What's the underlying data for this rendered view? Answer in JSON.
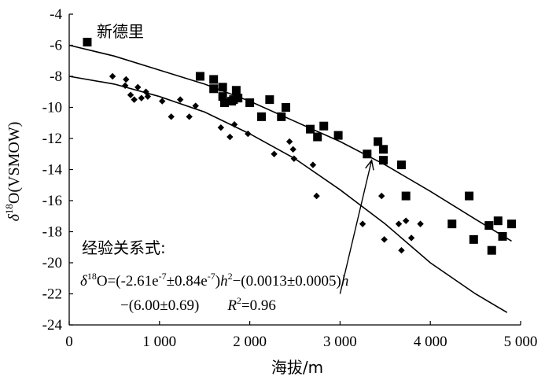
{
  "chart_data": {
    "type": "scatter",
    "xlabel": "海拔/m",
    "ylabel_parts": {
      "delta": "δ",
      "sup": "18",
      "rest": "O(VSMOW)"
    },
    "xlim": [
      0,
      5000
    ],
    "ylim": [
      -24,
      -4
    ],
    "x_ticks": [
      0,
      1000,
      2000,
      3000,
      4000,
      5000
    ],
    "x_tick_labels": [
      "0",
      "1 000",
      "2 000",
      "3 000",
      "4 000",
      "5 000"
    ],
    "y_ticks": [
      -24,
      -22,
      -20,
      -18,
      -16,
      -14,
      -12,
      -10,
      -8,
      -6,
      -4
    ],
    "y_tick_labels": [
      "-24",
      "-22",
      "-20",
      "-18",
      "-16",
      "-14",
      "-12",
      "-10",
      "-8",
      "-6",
      "-4"
    ],
    "grid": false,
    "series": [
      {
        "name": "新德里",
        "marker": "square",
        "color": "#000000",
        "points": [
          [
            200,
            -5.8
          ],
          [
            1450,
            -8.0
          ],
          [
            1600,
            -8.2
          ],
          [
            1600,
            -8.8
          ],
          [
            1700,
            -8.7
          ],
          [
            1700,
            -9.3
          ],
          [
            1720,
            -9.7
          ],
          [
            1800,
            -9.6
          ],
          [
            1820,
            -9.5
          ],
          [
            1850,
            -8.9
          ],
          [
            1870,
            -9.4
          ],
          [
            2000,
            -9.7
          ],
          [
            2130,
            -10.6
          ],
          [
            2220,
            -9.5
          ],
          [
            2350,
            -10.6
          ],
          [
            2400,
            -10.0
          ],
          [
            2670,
            -11.4
          ],
          [
            2750,
            -11.9
          ],
          [
            2820,
            -11.2
          ],
          [
            2980,
            -11.8
          ],
          [
            3300,
            -13.0
          ],
          [
            3420,
            -12.2
          ],
          [
            3480,
            -12.7
          ],
          [
            3480,
            -13.4
          ],
          [
            3680,
            -13.7
          ],
          [
            3730,
            -15.7
          ],
          [
            4240,
            -17.5
          ],
          [
            4430,
            -15.7
          ],
          [
            4480,
            -18.5
          ],
          [
            4650,
            -17.6
          ],
          [
            4680,
            -19.2
          ],
          [
            4750,
            -17.3
          ],
          [
            4800,
            -18.3
          ],
          [
            4900,
            -17.5
          ]
        ]
      },
      {
        "name": "",
        "marker": "diamond",
        "color": "#000000",
        "points": [
          [
            480,
            -8.0
          ],
          [
            620,
            -8.6
          ],
          [
            630,
            -8.2
          ],
          [
            680,
            -9.2
          ],
          [
            720,
            -9.5
          ],
          [
            760,
            -8.7
          ],
          [
            800,
            -9.4
          ],
          [
            850,
            -9.0
          ],
          [
            870,
            -9.3
          ],
          [
            1030,
            -9.6
          ],
          [
            1130,
            -10.6
          ],
          [
            1230,
            -9.5
          ],
          [
            1330,
            -10.6
          ],
          [
            1400,
            -9.9
          ],
          [
            1680,
            -11.3
          ],
          [
            1780,
            -11.9
          ],
          [
            1830,
            -11.1
          ],
          [
            1980,
            -11.7
          ],
          [
            2270,
            -13.0
          ],
          [
            2440,
            -12.2
          ],
          [
            2480,
            -12.7
          ],
          [
            2490,
            -13.3
          ],
          [
            2700,
            -13.7
          ],
          [
            2740,
            -15.7
          ],
          [
            3250,
            -17.5
          ],
          [
            3460,
            -15.7
          ],
          [
            3490,
            -18.5
          ],
          [
            3650,
            -17.5
          ],
          [
            3680,
            -19.2
          ],
          [
            3730,
            -17.3
          ],
          [
            3790,
            -18.4
          ],
          [
            3890,
            -17.5
          ]
        ]
      }
    ],
    "fit_lines": [
      {
        "x": [
          0,
          500,
          1000,
          1500,
          2000,
          2500,
          3000,
          3500,
          4000,
          4500,
          4900
        ],
        "y": [
          -6.0,
          -6.7,
          -7.6,
          -8.5,
          -9.6,
          -10.9,
          -12.2,
          -13.7,
          -15.4,
          -17.2,
          -18.6
        ]
      },
      {
        "x": [
          0,
          500,
          1000,
          1500,
          2000,
          2500,
          3000,
          3500,
          4000,
          4500,
          4850
        ],
        "y": [
          -8.0,
          -8.5,
          -9.3,
          -10.3,
          -11.7,
          -13.3,
          -15.3,
          -17.5,
          -20.0,
          -22.0,
          -23.2
        ]
      }
    ],
    "annotations": {
      "series_label": "新德里",
      "relation_title": "经验关系式:",
      "eq_line1": {
        "delta": "δ",
        "sup": "18",
        "prefix": "O=(-2.61e",
        "exp1": "-7",
        "mid1": "±0.84e",
        "exp2": "-7",
        "close": ")",
        "var": "h",
        "sq": "2",
        "rest": "−(0.0013±0.0005)",
        "var2": "h"
      },
      "eq_line2": {
        "left": "−(6.00±0.69)",
        "r": "R",
        "r_sup": "2",
        "r_val": "=0.96"
      },
      "arrow_from": [
        3000,
        -22.0
      ],
      "arrow_to": [
        3350,
        -13.4
      ]
    }
  }
}
